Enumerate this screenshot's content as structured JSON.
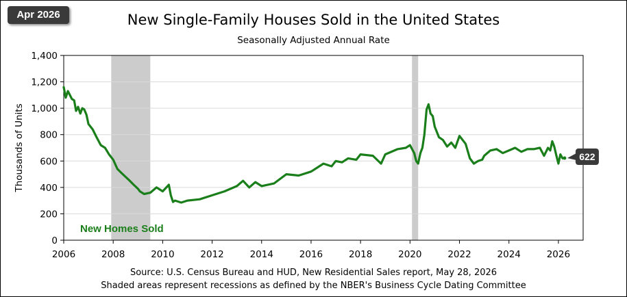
{
  "badge": "Apr 2026",
  "colors": {
    "line": "#1a7f1a",
    "recession": "#cccccc",
    "badge": "#3a3a3a",
    "grid": "#d9d9d9"
  },
  "chart_data": {
    "type": "line",
    "title": "New Single-Family Houses Sold in the United States",
    "subtitle": "Seasonally Adjusted  Annual  Rate",
    "ylabel": "Thousands of Units",
    "xlabel": "",
    "ylim": [
      0,
      1400
    ],
    "xlim": [
      2006,
      2027
    ],
    "y_ticks": [
      "0",
      "200",
      "400",
      "600",
      "800",
      "1,000",
      "1,200",
      "1,400"
    ],
    "x_ticks": [
      "2006",
      "2008",
      "2010",
      "2012",
      "2014",
      "2016",
      "2018",
      "2020",
      "2022",
      "2024",
      "2026"
    ],
    "grid": "horizontal",
    "recessions": [
      [
        2007.92,
        2009.5
      ],
      [
        2020.08,
        2020.33
      ]
    ],
    "series": [
      {
        "name": "New Homes Sold",
        "x": [
          2006.0,
          2006.08,
          2006.17,
          2006.25,
          2006.33,
          2006.42,
          2006.5,
          2006.58,
          2006.67,
          2006.75,
          2006.83,
          2006.92,
          2007.0,
          2007.17,
          2007.33,
          2007.5,
          2007.67,
          2007.83,
          2008.0,
          2008.17,
          2008.33,
          2008.5,
          2008.67,
          2008.83,
          2009.0,
          2009.08,
          2009.25,
          2009.5,
          2009.75,
          2010.0,
          2010.25,
          2010.33,
          2010.42,
          2010.5,
          2010.75,
          2011.0,
          2011.5,
          2012.0,
          2012.5,
          2013.0,
          2013.25,
          2013.5,
          2013.75,
          2014.0,
          2014.5,
          2015.0,
          2015.5,
          2016.0,
          2016.5,
          2016.83,
          2017.0,
          2017.25,
          2017.5,
          2017.83,
          2018.0,
          2018.5,
          2018.83,
          2019.0,
          2019.5,
          2019.83,
          2020.0,
          2020.17,
          2020.25,
          2020.33,
          2020.42,
          2020.5,
          2020.58,
          2020.67,
          2020.75,
          2020.83,
          2020.92,
          2021.0,
          2021.17,
          2021.33,
          2021.5,
          2021.67,
          2021.83,
          2022.0,
          2022.25,
          2022.42,
          2022.58,
          2022.75,
          2022.92,
          2023.0,
          2023.25,
          2023.5,
          2023.75,
          2024.0,
          2024.25,
          2024.5,
          2024.75,
          2025.0,
          2025.25,
          2025.42,
          2025.58,
          2025.67,
          2025.75,
          2025.83,
          2025.92,
          2026.0,
          2026.08,
          2026.17,
          2026.25
        ],
        "values": [
          1160,
          1080,
          1130,
          1100,
          1070,
          1060,
          980,
          1010,
          960,
          1000,
          990,
          950,
          880,
          840,
          780,
          720,
          700,
          650,
          610,
          540,
          510,
          480,
          450,
          420,
          390,
          370,
          350,
          360,
          400,
          370,
          420,
          340,
          290,
          300,
          285,
          300,
          310,
          340,
          370,
          410,
          450,
          400,
          440,
          410,
          430,
          500,
          490,
          520,
          580,
          560,
          600,
          590,
          620,
          610,
          650,
          640,
          580,
          650,
          690,
          700,
          720,
          660,
          600,
          580,
          660,
          700,
          800,
          990,
          1030,
          960,
          940,
          860,
          780,
          760,
          710,
          740,
          700,
          790,
          730,
          620,
          580,
          600,
          610,
          640,
          680,
          690,
          660,
          680,
          700,
          670,
          690,
          690,
          700,
          640,
          700,
          680,
          750,
          710,
          640,
          580,
          650,
          620,
          622
        ]
      }
    ],
    "last_value_label": "622",
    "annotation": "New Homes Sold"
  },
  "source": {
    "line1": "Source:  U.S. Census Bureau and HUD, New Residential Sales report, May 28, 2026",
    "line2": "Shaded areas represent recessions as defined by the NBER's Business Cycle Dating Committee"
  }
}
